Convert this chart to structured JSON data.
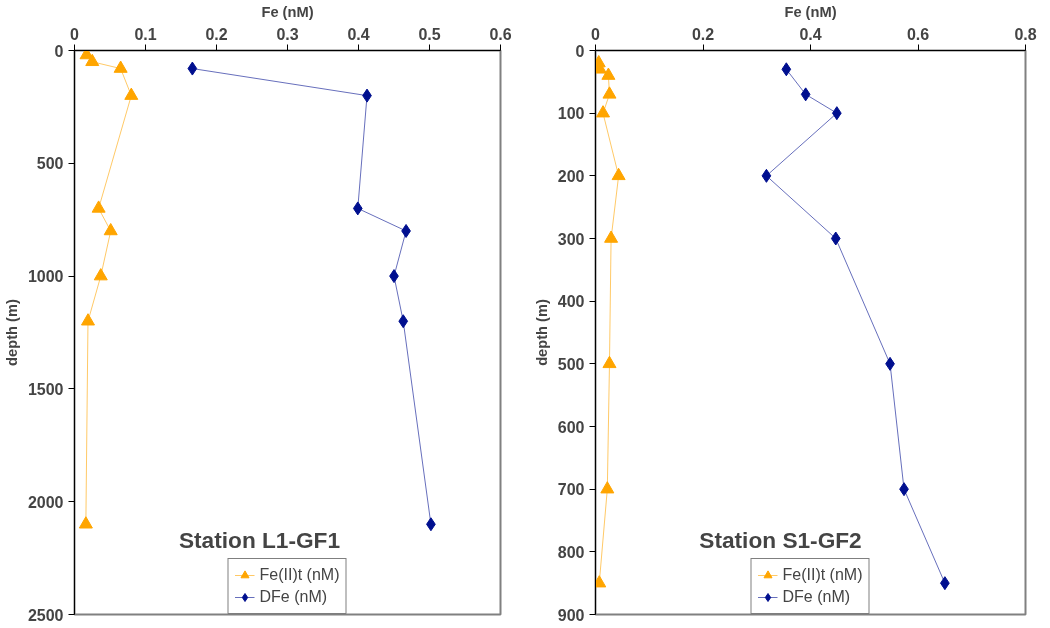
{
  "chart_data": [
    {
      "type": "line",
      "xlabel": "Fe (nM)",
      "ylabel": "depth (m)",
      "annotations": [
        "Station L1-GF1"
      ],
      "xlim": [
        0,
        0.6
      ],
      "xticks": [
        0,
        0.1,
        0.2,
        0.3,
        0.4,
        0.5,
        0.6
      ],
      "ylim": [
        2500,
        0
      ],
      "yticks": [
        0,
        500,
        1000,
        1500,
        2000,
        2500
      ],
      "grid": false,
      "legend": "bottom",
      "series": [
        {
          "name": "Fe(II)t (nM)",
          "color": "#ffa500",
          "marker": "triangle",
          "x": [
            0.017,
            0.025,
            0.065,
            0.08,
            0.034,
            0.051,
            0.037,
            0.019,
            0.016
          ],
          "values": [
            20,
            50,
            80,
            200,
            700,
            800,
            1000,
            1200,
            2100
          ]
        },
        {
          "name": "DFe (nM)",
          "color": "#000f8f",
          "marker": "diamond",
          "x": [
            0.166,
            0.412,
            0.399,
            0.467,
            0.45,
            0.463,
            0.502
          ],
          "values": [
            80,
            200,
            700,
            800,
            1000,
            1200,
            2100
          ]
        }
      ]
    },
    {
      "type": "line",
      "xlabel": "Fe (nM)",
      "ylabel": "depth (m)",
      "annotations": [
        "Station S1-GF2"
      ],
      "xlim": [
        0,
        0.8
      ],
      "xticks": [
        0,
        0.2,
        0.4,
        0.6,
        0.8
      ],
      "ylim": [
        900,
        0
      ],
      "yticks": [
        0,
        100,
        200,
        300,
        400,
        500,
        600,
        700,
        800,
        900
      ],
      "grid": false,
      "legend": "bottom",
      "series": [
        {
          "name": "Fe(II)t (nM)",
          "color": "#ffa500",
          "marker": "triangle",
          "x": [
            0.006,
            0.008,
            0.024,
            0.026,
            0.014,
            0.043,
            0.029,
            0.026,
            0.022,
            0.007
          ],
          "values": [
            20,
            30,
            40,
            70,
            100,
            200,
            300,
            500,
            700,
            850
          ]
        },
        {
          "name": "DFe (nM)",
          "color": "#000f8f",
          "marker": "diamond",
          "x": [
            0.355,
            0.391,
            0.449,
            0.318,
            0.447,
            0.548,
            0.574,
            0.65
          ],
          "values": [
            30,
            70,
            100,
            200,
            300,
            500,
            700,
            850
          ]
        }
      ]
    }
  ]
}
